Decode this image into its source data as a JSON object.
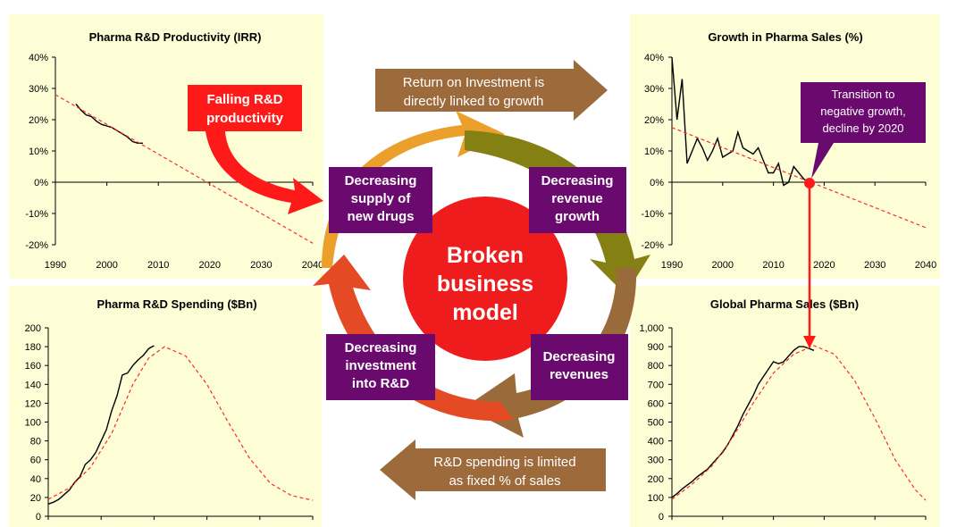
{
  "chart_data": [
    {
      "type": "line",
      "title": "Pharma R&D Productivity (IRR)",
      "x_ticks": [
        "1990",
        "2000",
        "2010",
        "2020",
        "2030",
        "2040"
      ],
      "y_ticks": [
        "40%",
        "30%",
        "20%",
        "10%",
        "0%",
        "-10%",
        "-20%"
      ],
      "xlim": [
        1990,
        2040
      ],
      "ylim": [
        -20,
        40
      ],
      "series": [
        {
          "x": [
            1994,
            1995,
            1996,
            1997,
            1998,
            1999,
            2000,
            2001,
            2002,
            2003,
            2004,
            2005,
            2006,
            2007
          ],
          "values": [
            25,
            23,
            21.5,
            21,
            19.5,
            18.5,
            18,
            17.5,
            16.5,
            15.5,
            14.5,
            13,
            12.5,
            12.5
          ]
        },
        {
          "x": [
            1990,
            2040
          ],
          "values": [
            28,
            -19.5
          ]
        }
      ]
    },
    {
      "type": "line",
      "title": "Growth in Pharma Sales (%)",
      "x_ticks": [
        "1990",
        "2000",
        "2010",
        "2020",
        "2030",
        "2040"
      ],
      "y_ticks": [
        "40%",
        "30%",
        "20%",
        "10%",
        "0%",
        "-10%",
        "-20%"
      ],
      "xlim": [
        1990,
        2040
      ],
      "ylim": [
        -20,
        40
      ],
      "series": [
        {
          "x": [
            1990,
            1991,
            1992,
            1993,
            1994,
            1995,
            1996,
            1997,
            1998,
            1999,
            2000,
            2001,
            2002,
            2003,
            2004,
            2005,
            2006,
            2007,
            2008,
            2009,
            2010,
            2011,
            2012,
            2013,
            2014,
            2015,
            2016,
            2017
          ],
          "values": [
            40,
            20,
            33,
            6,
            10,
            14,
            11,
            7,
            10,
            14,
            8,
            9,
            10,
            16,
            11,
            10,
            9,
            11,
            7,
            3,
            3,
            6,
            -1,
            0,
            5,
            3,
            1,
            0
          ]
        },
        {
          "x": [
            1990,
            2040
          ],
          "values": [
            17.5,
            -14.5
          ]
        }
      ]
    },
    {
      "type": "line",
      "title": "Pharma R&D Spending ($Bn)",
      "x_ticks": [],
      "y_ticks": [
        "200",
        "180",
        "160",
        "140",
        "120",
        "100",
        "80",
        "60",
        "40",
        "20",
        "0"
      ],
      "xlim": [
        1990,
        2040
      ],
      "ylim": [
        0,
        200
      ],
      "series": [
        {
          "x": [
            1990,
            1991,
            1992,
            1993,
            1994,
            1995,
            1996,
            1997,
            1998,
            1999,
            2000,
            2001,
            2002,
            2003,
            2004,
            2005,
            2006,
            2007,
            2008,
            2009,
            2010
          ],
          "values": [
            13,
            15,
            18,
            23,
            28,
            36,
            42,
            55,
            60,
            68,
            80,
            92,
            112,
            128,
            150,
            152,
            160,
            166,
            171,
            178,
            181
          ]
        },
        {
          "x": [
            1990,
            1994,
            1998,
            2002,
            2006,
            2009,
            2012,
            2016,
            2020,
            2024,
            2028,
            2032,
            2036,
            2040
          ],
          "values": [
            18,
            30,
            52,
            88,
            140,
            168,
            180,
            170,
            140,
            100,
            62,
            35,
            22,
            17
          ]
        }
      ]
    },
    {
      "type": "line",
      "title": "Global Pharma Sales ($Bn)",
      "x_ticks": [],
      "y_ticks": [
        "1,000",
        "900",
        "800",
        "700",
        "600",
        "500",
        "400",
        "300",
        "200",
        "100",
        "0"
      ],
      "xlim": [
        1990,
        2040
      ],
      "ylim": [
        0,
        1000
      ],
      "series": [
        {
          "x": [
            1990,
            1991,
            1992,
            1993,
            1994,
            1995,
            1996,
            1997,
            1998,
            1999,
            2000,
            2001,
            2002,
            2003,
            2004,
            2005,
            2006,
            2007,
            2008,
            2009,
            2010,
            2011,
            2012,
            2013,
            2014,
            2015,
            2016,
            2017,
            2018
          ],
          "values": [
            100,
            120,
            145,
            165,
            185,
            210,
            230,
            250,
            280,
            310,
            340,
            380,
            430,
            480,
            540,
            590,
            640,
            700,
            740,
            780,
            820,
            810,
            820,
            850,
            880,
            900,
            900,
            890,
            880
          ]
        },
        {
          "x": [
            1990,
            1994,
            1998,
            2002,
            2006,
            2010,
            2014,
            2018,
            2022,
            2026,
            2030,
            2034,
            2038,
            2040
          ],
          "values": [
            90,
            170,
            270,
            420,
            600,
            760,
            860,
            905,
            860,
            720,
            520,
            300,
            140,
            85
          ]
        }
      ]
    }
  ],
  "center": {
    "line1": "Broken",
    "line2": "business",
    "line3": "model"
  },
  "boxes": {
    "top_left": [
      "Decreasing",
      "supply of",
      "new drugs"
    ],
    "top_right": [
      "Decreasing",
      "revenue",
      "growth"
    ],
    "bottom_left": [
      "Decreasing",
      "investment",
      "into R&D"
    ],
    "bottom_right": [
      "Decreasing",
      "revenues"
    ]
  },
  "arrows": {
    "top": [
      "Return on Investment is",
      "directly linked to growth"
    ],
    "bottom": [
      "R&D spending is limited",
      "as fixed % of sales"
    ]
  },
  "annotations": {
    "falling": [
      "Falling R&D",
      "productivity"
    ],
    "transition": [
      "Transition to",
      "negative growth,",
      "decline by 2020"
    ]
  },
  "colors": {
    "panel": "#fdfdd6",
    "purple": "#6a0a6e",
    "brown_arrow": "#9c6a3b",
    "red": "#ff1a1a",
    "center": "#ee1c1c",
    "seg_orange": "#eca02c",
    "seg_olive": "#858014",
    "seg_brown": "#9a6b3a",
    "seg_darkorange": "#e06a1c",
    "seg_red": "#e44a24"
  }
}
